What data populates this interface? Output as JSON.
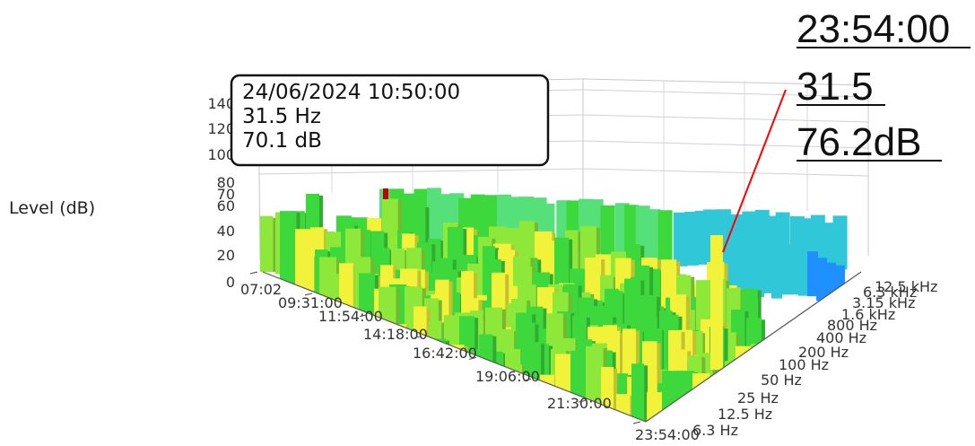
{
  "chart_data": {
    "type": "3d-bar",
    "ylabel": "Level (dB)",
    "z_ticks": [
      "0",
      "20",
      "40",
      "60",
      "70",
      "80",
      "100",
      "120",
      "140"
    ],
    "zlim": [
      0,
      140
    ],
    "time_ticks": [
      "07:02",
      "09:31:00",
      "11:54:00",
      "14:18:00",
      "16:42:00",
      "19:06:00",
      "21:30:00",
      "23:54:00"
    ],
    "freq_ticks": [
      "6.3 Hz",
      "12.5 Hz",
      "25 Hz",
      "50 Hz",
      "100 Hz",
      "200 Hz",
      "400 Hz",
      "800 Hz",
      "1.6 kHz",
      "3.15 kHz",
      "6.3 kHz",
      "12.5 kHz"
    ],
    "grid": true,
    "tooltip": {
      "datetime": "24/06/2024 10:50:00",
      "frequency": "31.5 Hz",
      "level": "70.1 dB"
    },
    "callout": {
      "time": "23:54:00",
      "frequency": "31.5",
      "level": "76.2dB"
    },
    "colors": {
      "high": "#f2f23a",
      "mid": "#3cd83c",
      "low": "#30c8d8",
      "lowest": "#1e90ff",
      "marker": "#c00000",
      "callout_line": "#ff0000"
    }
  }
}
